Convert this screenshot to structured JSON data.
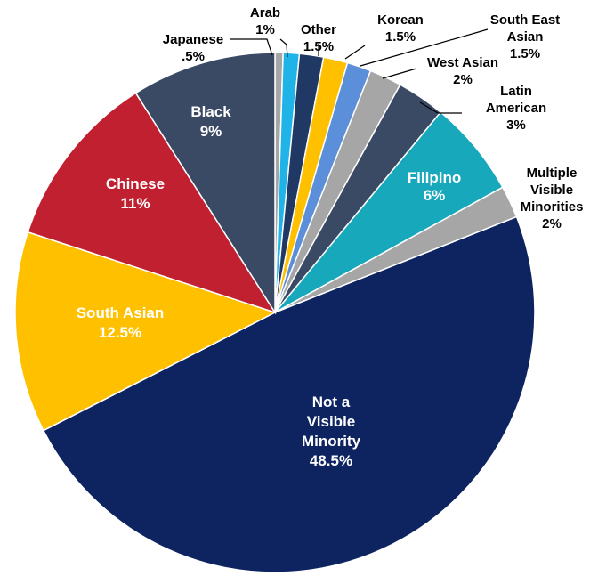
{
  "chart_data": {
    "type": "pie",
    "title": "",
    "slices": [
      {
        "label": "Japanese",
        "value_text": ".5%",
        "value": 0.5,
        "color": "#a6a6a6",
        "label_pos": "outside"
      },
      {
        "label": "Arab",
        "value_text": "1%",
        "value": 1,
        "color": "#1fb3e8",
        "label_pos": "outside"
      },
      {
        "label": "Other",
        "value_text": "1.5%",
        "value": 1.5,
        "color": "#1f3864",
        "label_pos": "outside"
      },
      {
        "label": "Korean",
        "value_text": "1.5%",
        "value": 1.5,
        "color": "#ffc000",
        "label_pos": "outside"
      },
      {
        "label": "South East Asian",
        "value_text": "1.5%",
        "value": 1.5,
        "color": "#5b8fd9",
        "label_pos": "outside"
      },
      {
        "label": "West Asian",
        "value_text": "2%",
        "value": 2,
        "color": "#a6a6a6",
        "label_pos": "outside"
      },
      {
        "label": "Latin American",
        "value_text": "3%",
        "value": 3,
        "color": "#3a4a64",
        "label_pos": "outside"
      },
      {
        "label": "Filipino",
        "value_text": "6%",
        "value": 6,
        "color": "#17a8bc",
        "label_pos": "inside"
      },
      {
        "label": "Multiple Visible Minorities",
        "value_text": "2%",
        "value": 2,
        "color": "#a6a6a6",
        "label_pos": "outside"
      },
      {
        "label": "Not a Visible Minority",
        "value_text": "48.5%",
        "value": 48.5,
        "color": "#0d2461",
        "label_pos": "inside"
      },
      {
        "label": "South Asian",
        "value_text": "12.5%",
        "value": 12.5,
        "color": "#ffc000",
        "label_pos": "inside"
      },
      {
        "label": "Chinese",
        "value_text": "11%",
        "value": 11,
        "color": "#c0202f",
        "label_pos": "inside"
      },
      {
        "label": "Black",
        "value_text": "9%",
        "value": 9,
        "color": "#3a4a64",
        "label_pos": "inside"
      }
    ]
  }
}
